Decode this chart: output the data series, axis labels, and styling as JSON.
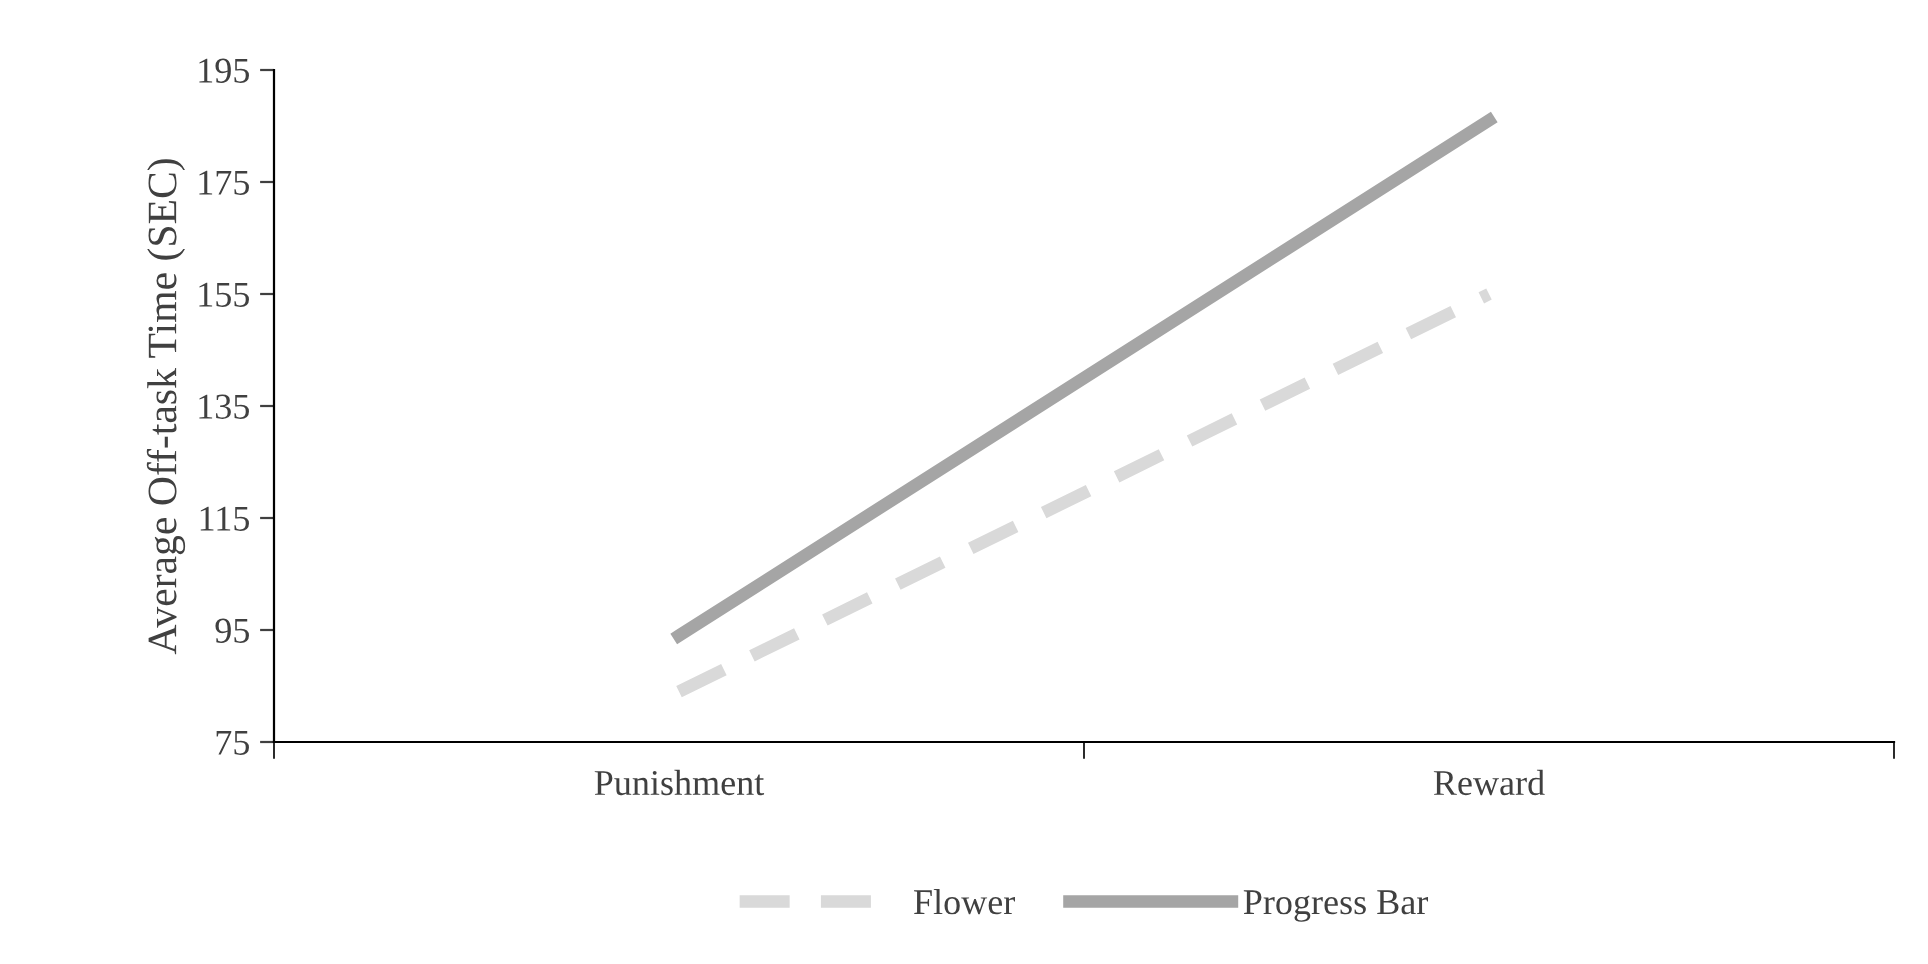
{
  "chart_data": {
    "type": "line",
    "ylabel": "Average Off-task Time (SEC)",
    "categories": [
      "Punishment",
      "Reward"
    ],
    "series": [
      {
        "name": "Flower",
        "color": "#d9d9d9",
        "values": [
          84,
          155
        ],
        "line_style": "dashed"
      },
      {
        "name": "Progress Bar",
        "color": "#a5a5a5",
        "values": [
          94,
          186
        ],
        "line_style": "solid"
      }
    ],
    "ylim": [
      75,
      195
    ],
    "yticks": [
      75,
      95,
      115,
      135,
      155,
      175,
      195
    ],
    "grid": false,
    "legend": "bottom",
    "marker": "none"
  }
}
